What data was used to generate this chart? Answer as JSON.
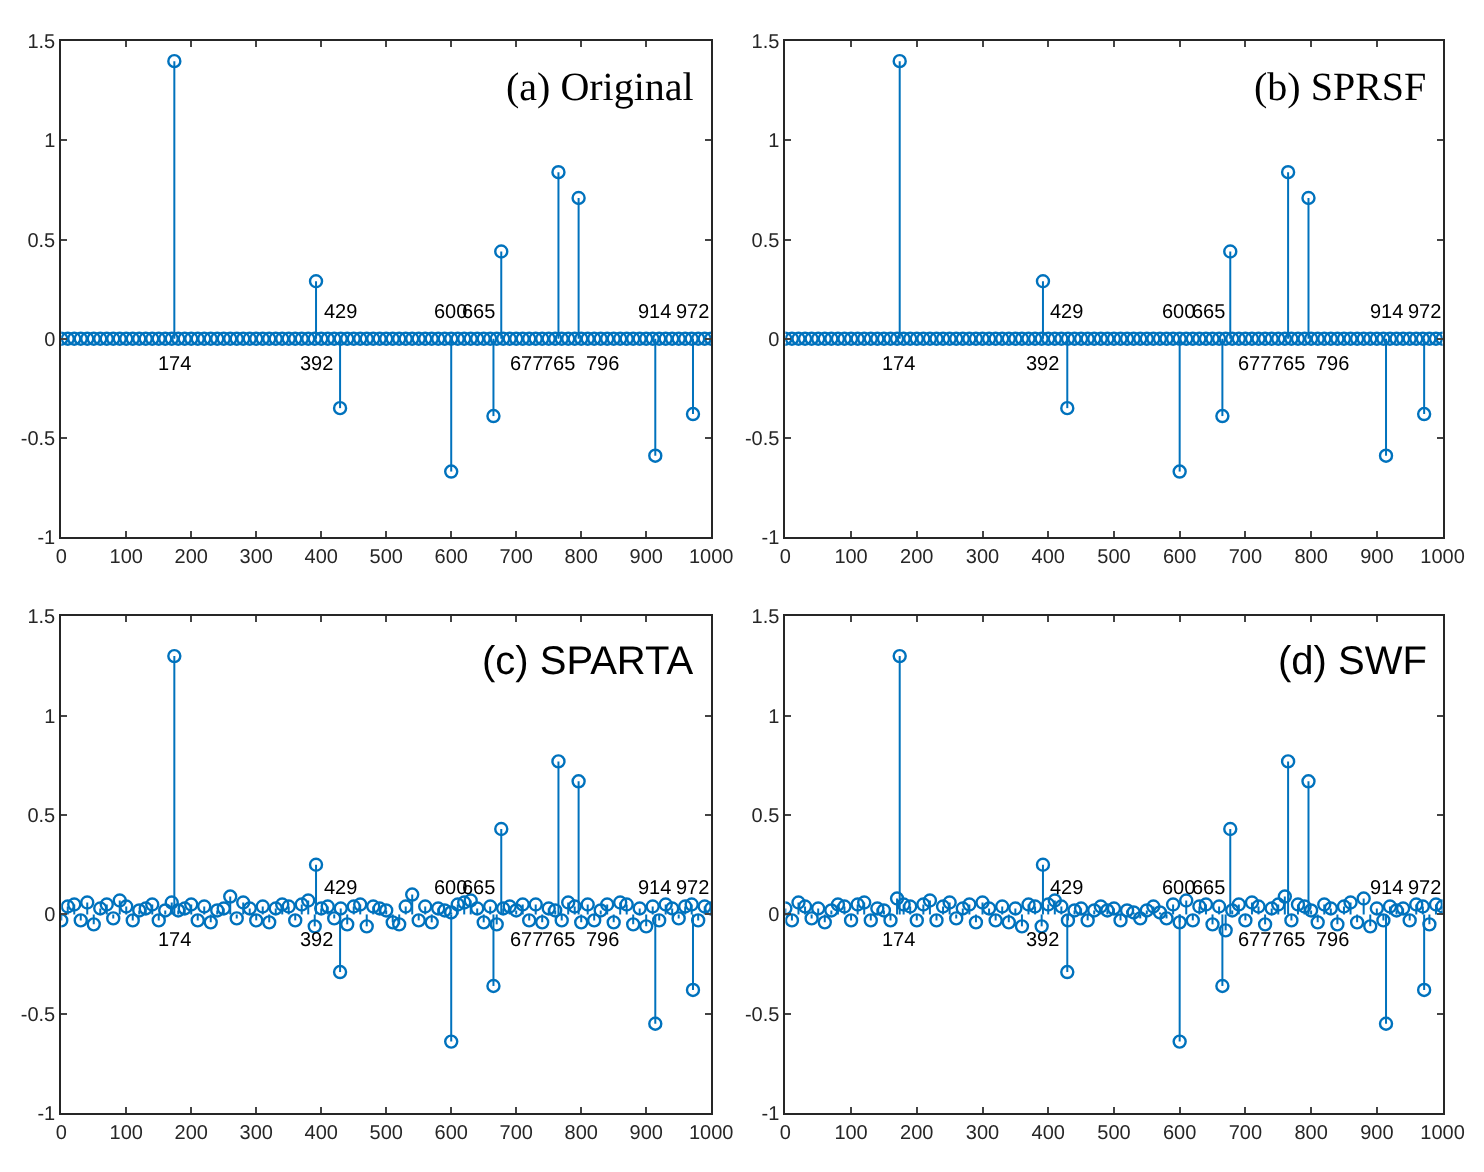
{
  "chart_data": [
    {
      "type": "lollipop",
      "title": "(a) Original",
      "marker": "circle",
      "xlim": [
        0,
        1000
      ],
      "xticks": [
        0,
        100,
        200,
        300,
        400,
        500,
        600,
        700,
        800,
        900,
        1000
      ],
      "ylim": [
        -1,
        1.5
      ],
      "yticks": [
        -1,
        -0.5,
        0,
        0.5,
        1,
        1.5
      ],
      "x": [
        0,
        10,
        20,
        30,
        40,
        50,
        60,
        70,
        80,
        90,
        100,
        110,
        120,
        130,
        140,
        150,
        160,
        170,
        180,
        190,
        200,
        210,
        220,
        230,
        240,
        250,
        260,
        270,
        280,
        290,
        300,
        310,
        320,
        330,
        340,
        350,
        360,
        370,
        380,
        390,
        400,
        410,
        420,
        430,
        440,
        450,
        460,
        470,
        480,
        490,
        500,
        510,
        520,
        530,
        540,
        550,
        560,
        570,
        580,
        590,
        600,
        610,
        620,
        630,
        640,
        650,
        660,
        670,
        680,
        690,
        700,
        710,
        720,
        730,
        740,
        750,
        760,
        770,
        780,
        790,
        800,
        810,
        820,
        830,
        840,
        850,
        860,
        870,
        880,
        890,
        900,
        910,
        920,
        930,
        940,
        950,
        960,
        970,
        980,
        990,
        1000,
        174,
        392,
        429,
        600,
        665,
        677,
        765,
        796,
        914,
        972
      ],
      "series": [
        {
          "color": "#0072bd",
          "values": [
            0,
            0,
            0,
            0,
            0,
            0,
            0,
            0,
            0,
            0,
            0,
            0,
            0,
            0,
            0,
            0,
            0,
            0,
            0,
            0,
            0,
            0,
            0,
            0,
            0,
            0,
            0,
            0,
            0,
            0,
            0,
            0,
            0,
            0,
            0,
            0,
            0,
            0,
            0,
            0,
            0,
            0,
            0,
            0,
            0,
            0,
            0,
            0,
            0,
            0,
            0,
            0,
            0,
            0,
            0,
            0,
            0,
            0,
            0,
            0,
            0,
            0,
            0,
            0,
            0,
            0,
            0,
            0,
            0,
            0,
            0,
            0,
            0,
            0,
            0,
            0,
            0,
            0,
            0,
            0,
            0,
            0,
            0,
            0,
            0,
            0,
            0,
            0,
            0,
            0,
            0,
            0,
            0,
            0,
            0,
            0,
            0,
            0,
            0,
            0,
            0,
            1.4,
            0.29,
            -0.35,
            -0.67,
            -0.39,
            0.44,
            0.84,
            0.71,
            -0.59,
            -0.38
          ]
        }
      ],
      "annotations": [
        {
          "text": "174",
          "x": 174,
          "y": 0
        },
        {
          "text": "392",
          "x": 392,
          "y": 0
        },
        {
          "text": "429",
          "x": 429,
          "y": 0
        },
        {
          "text": "600",
          "x": 600,
          "y": 0
        },
        {
          "text": "665",
          "x": 665,
          "y": 0
        },
        {
          "text": "677",
          "x": 677,
          "y": 0
        },
        {
          "text": "765",
          "x": 765,
          "y": 0
        },
        {
          "text": "796",
          "x": 796,
          "y": 0
        },
        {
          "text": "914",
          "x": 914,
          "y": 0
        },
        {
          "text": "972",
          "x": 972,
          "y": 0
        }
      ]
    },
    {
      "type": "lollipop",
      "title": "(b) SPRSF",
      "marker": "circle",
      "xlim": [
        0,
        1000
      ],
      "xticks": [
        0,
        100,
        200,
        300,
        400,
        500,
        600,
        700,
        800,
        900,
        1000
      ],
      "ylim": [
        -1,
        1.5
      ],
      "yticks": [
        -1,
        -0.5,
        0,
        0.5,
        1,
        1.5
      ],
      "x": [
        0,
        10,
        20,
        30,
        40,
        50,
        60,
        70,
        80,
        90,
        100,
        110,
        120,
        130,
        140,
        150,
        160,
        170,
        180,
        190,
        200,
        210,
        220,
        230,
        240,
        250,
        260,
        270,
        280,
        290,
        300,
        310,
        320,
        330,
        340,
        350,
        360,
        370,
        380,
        390,
        400,
        410,
        420,
        430,
        440,
        450,
        460,
        470,
        480,
        490,
        500,
        510,
        520,
        530,
        540,
        550,
        560,
        570,
        580,
        590,
        600,
        610,
        620,
        630,
        640,
        650,
        660,
        670,
        680,
        690,
        700,
        710,
        720,
        730,
        740,
        750,
        760,
        770,
        780,
        790,
        800,
        810,
        820,
        830,
        840,
        850,
        860,
        870,
        880,
        890,
        900,
        910,
        920,
        930,
        940,
        950,
        960,
        970,
        980,
        990,
        1000,
        174,
        392,
        429,
        600,
        665,
        677,
        765,
        796,
        914,
        972
      ],
      "series": [
        {
          "color": "#0072bd",
          "values": [
            0,
            0,
            0,
            0,
            0,
            0,
            0,
            0,
            0,
            0,
            0,
            0,
            0,
            0,
            0,
            0,
            0,
            0,
            0,
            0,
            0,
            0,
            0,
            0,
            0,
            0,
            0,
            0,
            0,
            0,
            0,
            0,
            0,
            0,
            0,
            0,
            0,
            0,
            0,
            0,
            0,
            0,
            0,
            0,
            0,
            0,
            0,
            0,
            0,
            0,
            0,
            0,
            0,
            0,
            0,
            0,
            0,
            0,
            0,
            0,
            0,
            0,
            0,
            0,
            0,
            0,
            0,
            0,
            0,
            0,
            0,
            0,
            0,
            0,
            0,
            0,
            0,
            0,
            0,
            0,
            0,
            0,
            0,
            0,
            0,
            0,
            0,
            0,
            0,
            0,
            0,
            0,
            0,
            0,
            0,
            0,
            0,
            0,
            0,
            0,
            0,
            1.4,
            0.29,
            -0.35,
            -0.67,
            -0.39,
            0.44,
            0.84,
            0.71,
            -0.59,
            -0.38
          ]
        }
      ],
      "annotations": [
        {
          "text": "174",
          "x": 174,
          "y": 0
        },
        {
          "text": "392",
          "x": 392,
          "y": 0
        },
        {
          "text": "429",
          "x": 429,
          "y": 0
        },
        {
          "text": "600",
          "x": 600,
          "y": 0
        },
        {
          "text": "665",
          "x": 665,
          "y": 0
        },
        {
          "text": "677",
          "x": 677,
          "y": 0
        },
        {
          "text": "765",
          "x": 765,
          "y": 0
        },
        {
          "text": "796",
          "x": 796,
          "y": 0
        },
        {
          "text": "914",
          "x": 914,
          "y": 0
        },
        {
          "text": "972",
          "x": 972,
          "y": 0
        }
      ]
    },
    {
      "type": "lollipop",
      "title": "(c) SPARTA",
      "marker": "circle",
      "xlim": [
        0,
        1000
      ],
      "xticks": [
        0,
        100,
        200,
        300,
        400,
        500,
        600,
        700,
        800,
        900,
        1000
      ],
      "ylim": [
        -1,
        1.5
      ],
      "yticks": [
        -1,
        -0.5,
        0,
        0.5,
        1,
        1.5
      ],
      "x": [
        0,
        10,
        20,
        30,
        40,
        50,
        60,
        70,
        80,
        90,
        100,
        110,
        120,
        130,
        140,
        150,
        160,
        170,
        180,
        190,
        200,
        210,
        220,
        230,
        240,
        250,
        260,
        270,
        280,
        290,
        300,
        310,
        320,
        330,
        340,
        350,
        360,
        370,
        380,
        390,
        400,
        410,
        420,
        430,
        440,
        450,
        460,
        470,
        480,
        490,
        500,
        510,
        520,
        530,
        540,
        550,
        560,
        570,
        580,
        590,
        600,
        610,
        620,
        630,
        640,
        650,
        660,
        670,
        680,
        690,
        700,
        710,
        720,
        730,
        740,
        750,
        760,
        770,
        780,
        790,
        800,
        810,
        820,
        830,
        840,
        850,
        860,
        870,
        880,
        890,
        900,
        910,
        920,
        930,
        940,
        950,
        960,
        970,
        980,
        990,
        1000,
        174,
        392,
        429,
        600,
        665,
        677,
        765,
        796,
        914,
        972
      ],
      "series": [
        {
          "color": "#0072bd",
          "values": [
            -0.03,
            0.04,
            0.05,
            -0.03,
            0.06,
            -0.05,
            0.03,
            0.05,
            -0.02,
            0.07,
            0.04,
            -0.03,
            0.02,
            0.03,
            0.05,
            -0.03,
            0.02,
            0.06,
            0.02,
            0.03,
            0.05,
            -0.03,
            0.04,
            -0.04,
            0.02,
            0.03,
            0.09,
            -0.02,
            0.06,
            0.03,
            -0.03,
            0.04,
            -0.04,
            0.03,
            0.05,
            0.04,
            -0.03,
            0.05,
            0.07,
            -0.06,
            0.03,
            0.04,
            -0.02,
            0.03,
            -0.05,
            0.04,
            0.05,
            -0.06,
            0.04,
            0.03,
            0.02,
            -0.04,
            -0.05,
            0.04,
            0.1,
            -0.03,
            0.04,
            -0.04,
            0.03,
            0.02,
            0.01,
            0.05,
            0.06,
            0.07,
            0.03,
            -0.04,
            0.04,
            -0.05,
            0.03,
            0.04,
            0.02,
            0.05,
            -0.03,
            0.05,
            -0.04,
            0.03,
            0.02,
            -0.03,
            0.06,
            0.04,
            -0.04,
            0.05,
            -0.03,
            0.02,
            0.05,
            -0.04,
            0.06,
            0.05,
            -0.05,
            0.03,
            -0.06,
            0.04,
            -0.03,
            0.05,
            0.03,
            -0.02,
            0.04,
            0.05,
            -0.03,
            0.04,
            0.03,
            1.3,
            0.25,
            -0.29,
            -0.64,
            -0.36,
            0.43,
            0.77,
            0.67,
            -0.55,
            -0.38
          ]
        }
      ],
      "annotations": [
        {
          "text": "174",
          "x": 174,
          "y": 0
        },
        {
          "text": "392",
          "x": 392,
          "y": 0
        },
        {
          "text": "429",
          "x": 429,
          "y": 0
        },
        {
          "text": "600",
          "x": 600,
          "y": 0
        },
        {
          "text": "665",
          "x": 665,
          "y": 0
        },
        {
          "text": "677",
          "x": 677,
          "y": 0
        },
        {
          "text": "765",
          "x": 765,
          "y": 0
        },
        {
          "text": "796",
          "x": 796,
          "y": 0
        },
        {
          "text": "914",
          "x": 914,
          "y": 0
        },
        {
          "text": "972",
          "x": 972,
          "y": 0
        }
      ]
    },
    {
      "type": "lollipop",
      "title": "(d) SWF",
      "marker": "circle",
      "xlim": [
        0,
        1000
      ],
      "xticks": [
        0,
        100,
        200,
        300,
        400,
        500,
        600,
        700,
        800,
        900,
        1000
      ],
      "ylim": [
        -1,
        1.5
      ],
      "yticks": [
        -1,
        -0.5,
        0,
        0.5,
        1,
        1.5
      ],
      "x": [
        0,
        10,
        20,
        30,
        40,
        50,
        60,
        70,
        80,
        90,
        100,
        110,
        120,
        130,
        140,
        150,
        160,
        170,
        180,
        190,
        200,
        210,
        220,
        230,
        240,
        250,
        260,
        270,
        280,
        290,
        300,
        310,
        320,
        330,
        340,
        350,
        360,
        370,
        380,
        390,
        400,
        410,
        420,
        430,
        440,
        450,
        460,
        470,
        480,
        490,
        500,
        510,
        520,
        530,
        540,
        550,
        560,
        570,
        580,
        590,
        600,
        610,
        620,
        630,
        640,
        650,
        660,
        670,
        680,
        690,
        700,
        710,
        720,
        730,
        740,
        750,
        760,
        770,
        780,
        790,
        800,
        810,
        820,
        830,
        840,
        850,
        860,
        870,
        880,
        890,
        900,
        910,
        920,
        930,
        940,
        950,
        960,
        970,
        980,
        990,
        1000,
        174,
        392,
        429,
        600,
        665,
        677,
        765,
        796,
        914,
        972
      ],
      "series": [
        {
          "color": "#0072bd",
          "values": [
            0.03,
            -0.03,
            0.06,
            0.04,
            -0.02,
            0.03,
            -0.04,
            0.02,
            0.05,
            0.04,
            -0.03,
            0.05,
            0.06,
            -0.03,
            0.03,
            0.02,
            -0.03,
            0.08,
            0.05,
            0.04,
            -0.03,
            0.05,
            0.07,
            -0.03,
            0.04,
            0.06,
            -0.02,
            0.03,
            0.05,
            -0.04,
            0.06,
            0.03,
            -0.03,
            0.04,
            -0.04,
            0.03,
            -0.06,
            0.05,
            0.04,
            -0.06,
            0.05,
            0.07,
            0.04,
            -0.03,
            0.02,
            0.03,
            -0.03,
            0.02,
            0.04,
            0.02,
            0.03,
            -0.03,
            0.02,
            0.01,
            -0.02,
            0.02,
            0.04,
            0.01,
            -0.02,
            0.05,
            -0.04,
            0.07,
            -0.03,
            0.04,
            0.05,
            -0.05,
            0.04,
            -0.08,
            0.02,
            0.05,
            -0.03,
            0.06,
            0.04,
            -0.05,
            0.03,
            0.05,
            0.09,
            -0.03,
            0.05,
            0.04,
            0.02,
            -0.04,
            0.05,
            0.03,
            -0.05,
            0.04,
            0.06,
            -0.04,
            0.08,
            -0.06,
            0.03,
            -0.03,
            0.04,
            0.02,
            0.03,
            -0.03,
            0.05,
            0.04,
            -0.05,
            0.05,
            0.04,
            1.3,
            0.25,
            -0.29,
            -0.64,
            -0.36,
            0.43,
            0.77,
            0.67,
            -0.55,
            -0.38
          ]
        }
      ],
      "annotations": [
        {
          "text": "174",
          "x": 174,
          "y": 0
        },
        {
          "text": "392",
          "x": 392,
          "y": 0
        },
        {
          "text": "429",
          "x": 429,
          "y": 0
        },
        {
          "text": "600",
          "x": 600,
          "y": 0
        },
        {
          "text": "665",
          "x": 665,
          "y": 0
        },
        {
          "text": "677",
          "x": 677,
          "y": 0
        },
        {
          "text": "765",
          "x": 765,
          "y": 0
        },
        {
          "text": "796",
          "x": 796,
          "y": 0
        },
        {
          "text": "914",
          "x": 914,
          "y": 0
        },
        {
          "text": "972",
          "x": 972,
          "y": 0
        }
      ]
    }
  ]
}
